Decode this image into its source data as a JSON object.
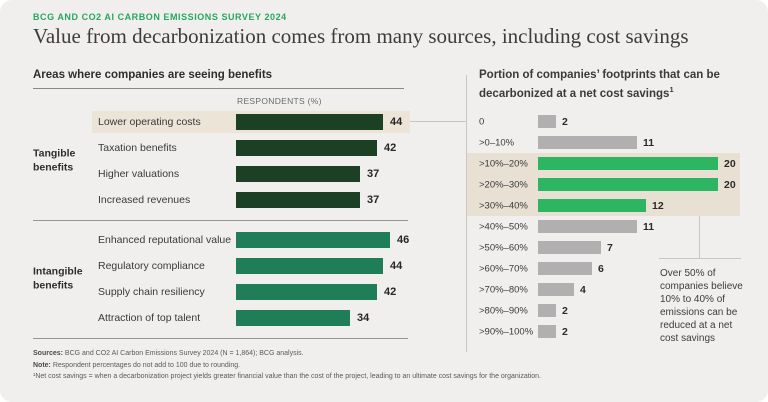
{
  "header": {
    "eyebrow": "BCG AND CO2 AI CARBON EMISSIONS SURVEY 2024",
    "title": "Value from decarbonization comes from many sources, including cost savings"
  },
  "left_panel": {
    "heading": "Areas where companies are seeing benefits",
    "axis_label": "RESPONDENTS (%)"
  },
  "right_panel": {
    "title_line1": "Portion of companies’ footprints that can be",
    "title_line2": "decarbonized at a net cost savings",
    "title_sup": "1"
  },
  "footer": {
    "sources_label": "Sources:",
    "sources_text": "BCG and CO2 AI Carbon Emissions Survey 2024 (N = 1,864); BCG analysis.",
    "note_label": "Note:",
    "note_text": "Respondent percentages do not add to 100 due to rounding.",
    "footnote": "¹Net cost savings = when a decarbonization project yields greater financial value than the cost of the project, leading to an ultimate cost savings for the organization."
  },
  "colors": {
    "background": "#f0efed",
    "accent_green": "#27a75c",
    "bar_dark_green": "#1c4024",
    "bar_medium_green": "#1f7d58",
    "bar_bright_green": "#2eb561",
    "bar_gray": "#b2afb0",
    "highlight_beige_left": "#ece4d7",
    "highlight_beige_right": "#e8e0d2",
    "rule_gray": "#c9c6c0"
  },
  "chart_data": [
    {
      "type": "bar",
      "orientation": "horizontal",
      "title": "Areas where companies are seeing benefits",
      "xlabel": "RESPONDENTS (%)",
      "xlim": [
        0,
        50
      ],
      "grid": false,
      "highlighted_category": "Lower operating costs",
      "groups": [
        {
          "name": "Tangible benefits",
          "bar_color": "#1c4024",
          "categories": [
            "Lower operating costs",
            "Taxation benefits",
            "Higher valuations",
            "Increased revenues"
          ],
          "values": [
            44,
            42,
            37,
            37
          ]
        },
        {
          "name": "Intangible benefits",
          "bar_color": "#1f7d58",
          "categories": [
            "Enhanced reputational value",
            "Regulatory compliance",
            "Supply chain resiliency",
            "Attraction of top talent"
          ],
          "values": [
            46,
            44,
            42,
            34
          ]
        }
      ]
    },
    {
      "type": "bar",
      "orientation": "horizontal",
      "title": "Portion of companies’ footprints that can be decarbonized at a net cost savings¹",
      "xlim": [
        0,
        22
      ],
      "grid": false,
      "categories": [
        "0",
        ">0–10%",
        ">10%–20%",
        ">20%–30%",
        ">30%–40%",
        ">40%–50%",
        ">50%–60%",
        ">60%–70%",
        ">70%–80%",
        ">80%–90%",
        ">90%–100%"
      ],
      "values": [
        2,
        11,
        20,
        20,
        12,
        11,
        7,
        6,
        4,
        2,
        2
      ],
      "highlighted_categories": [
        ">10%–20%",
        ">20%–30%",
        ">30%–40%"
      ],
      "annotation": "Over 50% of companies believe 10% to 40% of emissions can be reduced at a net cost savings"
    }
  ]
}
